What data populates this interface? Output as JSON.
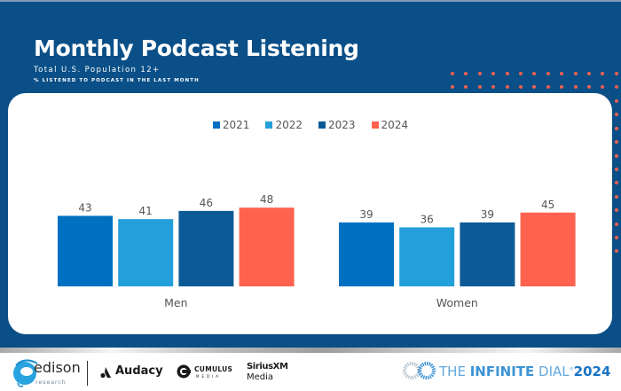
{
  "header": {
    "title": "Monthly Podcast Listening",
    "subtitle": "Total U.S. Population 12+",
    "note": "% LISTENED TO PODCAST IN THE LAST MONTH"
  },
  "colors": {
    "background": "#0a4f87",
    "accent_dots": "#f0614f",
    "2021": "#0070c0",
    "2022": "#239fd9",
    "2023": "#0c5b96",
    "2024": "#ff634f"
  },
  "chart_data": {
    "type": "bar",
    "title": "Monthly Podcast Listening",
    "subtitle": "Total U.S. Population 12+ — % listened to podcast in the last month",
    "categories": [
      "Men",
      "Women"
    ],
    "series": [
      {
        "name": "2021",
        "values": [
          43,
          39
        ]
      },
      {
        "name": "2022",
        "values": [
          41,
          36
        ]
      },
      {
        "name": "2023",
        "values": [
          46,
          39
        ]
      },
      {
        "name": "2024",
        "values": [
          48,
          45
        ]
      }
    ],
    "xlabel": "",
    "ylabel": "",
    "ylim": [
      0,
      50
    ],
    "grid": false,
    "legend": "top-center",
    "data_labels": true
  },
  "footer": {
    "edison": "edison",
    "edison_sub": "research",
    "audacy": "Audacy",
    "cumulus": "CUMULUS",
    "cumulus_sub": "MEDIA",
    "sirius": "SiriusXM",
    "sirius_sub": "Media",
    "infinite_the": "THE ",
    "infinite_word": "INFINITE",
    "infinite_dial": " DIAL",
    "infinite_year": "2024"
  }
}
